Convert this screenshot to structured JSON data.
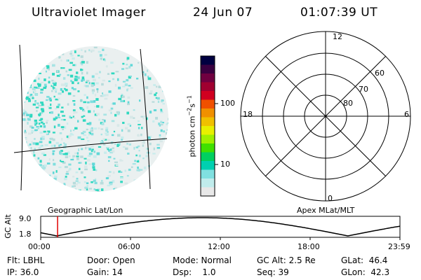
{
  "header": {
    "title": "Ultraviolet Imager",
    "date": "24 Jun 07",
    "time": "01:07:39 UT"
  },
  "colorbar": {
    "unit_label": "photon cm",
    "unit_sup1": "−2",
    "unit_mid": "s",
    "unit_sup2": "−1",
    "ticks": [
      "100",
      "10"
    ],
    "colors": [
      "#000040",
      "#3a0040",
      "#700040",
      "#a00030",
      "#d00020",
      "#f05000",
      "#f09000",
      "#f0c000",
      "#e8f000",
      "#a0f000",
      "#40e000",
      "#00d060",
      "#00d0b0",
      "#80e0e0",
      "#c0ecec",
      "#e8e8e8"
    ]
  },
  "left_panel": {
    "coord_label": "Geographic Lat/Lon"
  },
  "polar_plot": {
    "coord_label": "Apex MLat/MLT",
    "mlt_labels": {
      "top": "12",
      "left": "18",
      "right": "6",
      "bottom": "0"
    },
    "lat_labels": [
      "60",
      "70",
      "80"
    ]
  },
  "timeline": {
    "axis_label": "GC Alt",
    "y_ticks": [
      "9.0",
      "1.8"
    ],
    "x_ticks": [
      "00:00",
      "06:00",
      "12:00",
      "18:00",
      "23:59"
    ],
    "current_time_fraction": 0.047
  },
  "status": {
    "flt": "Flt: LBHL",
    "ip": "IP: 36.0",
    "door": "Door: Open",
    "gain": "Gain: 14",
    "mode": "Mode: Normal",
    "dsp": "Dsp:    1.0",
    "gc_alt": "GC Alt: 2.5 Re",
    "seq": "Seq: 39",
    "glat": "GLat:  46.4",
    "glon": "GLon:  42.3"
  }
}
